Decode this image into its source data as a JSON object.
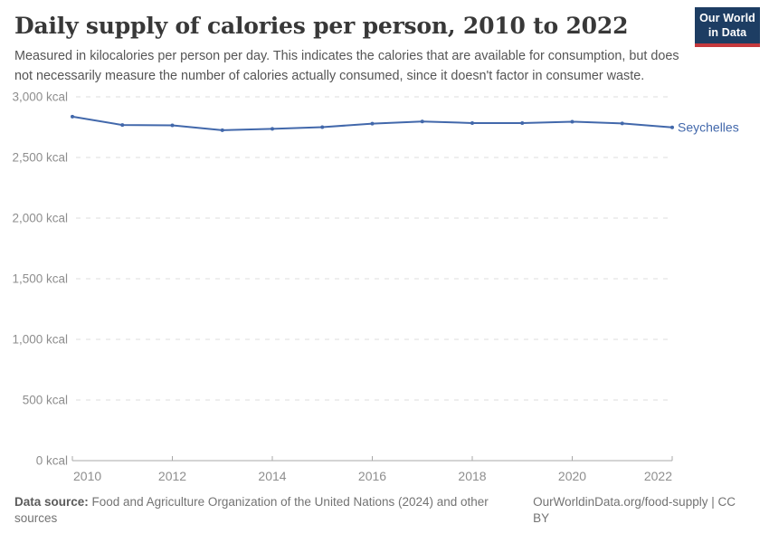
{
  "header": {
    "title": "Daily supply of calories per person, 2010 to 2022",
    "subtitle": "Measured in kilocalories per person per day. This indicates the calories that are available for consumption, but does not necessarily measure the number of calories actually consumed, since it doesn't factor in consumer waste."
  },
  "logo": {
    "line1": "Our World",
    "line2": "in Data",
    "bg_color": "#1d3d63",
    "stripe_color": "#c5393d",
    "text_color": "#ffffff"
  },
  "chart_data": {
    "type": "line",
    "title": "Daily supply of calories per person, 2010 to 2022",
    "x": [
      2010,
      2011,
      2012,
      2013,
      2014,
      2015,
      2016,
      2017,
      2018,
      2019,
      2020,
      2021,
      2022
    ],
    "series": [
      {
        "name": "Seychelles",
        "color": "#4268ab",
        "values": [
          2837,
          2768,
          2765,
          2725,
          2736,
          2750,
          2779,
          2797,
          2784,
          2784,
          2795,
          2781,
          2748
        ]
      }
    ],
    "unit": "kcal",
    "ylim": [
      0,
      3000
    ],
    "yticks": [
      0,
      500,
      1000,
      1500,
      2000,
      2500,
      3000
    ],
    "xticks": [
      2010,
      2012,
      2014,
      2016,
      2018,
      2020,
      2022
    ],
    "grid": "dashed horizontal gridlines",
    "legend_position": "label right of line end",
    "axis_color": "#a8a8a8",
    "grid_color": "#dcdcdc",
    "tick_label_color": "#8e8e8e",
    "marker": "dot"
  },
  "footer": {
    "datasource_label": "Data source:",
    "datasource_text": " Food and Agriculture Organization of the United Nations (2024) and other sources",
    "credit": "OurWorldinData.org/food-supply | CC BY"
  }
}
